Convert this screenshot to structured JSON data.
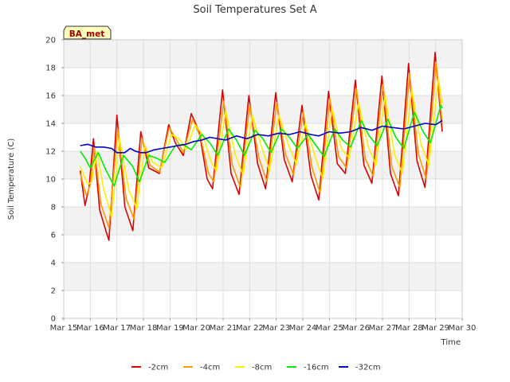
{
  "chart_data": {
    "type": "line",
    "title": "Soil Temperatures Set A",
    "xlabel": "Time",
    "ylabel": "Soil Temperature (C)",
    "ylim": [
      0,
      20
    ],
    "xlim": [
      15,
      30
    ],
    "grid": true,
    "legend": "bottom",
    "badge": "BA_met",
    "yticks": [
      0,
      2,
      4,
      6,
      8,
      10,
      12,
      14,
      16,
      18,
      20
    ],
    "xticks": [
      {
        "x": 15,
        "label": "Mar 15"
      },
      {
        "x": 16,
        "label": "Mar 16"
      },
      {
        "x": 17,
        "label": "Mar 17"
      },
      {
        "x": 18,
        "label": "Mar 18"
      },
      {
        "x": 19,
        "label": "Mar 19"
      },
      {
        "x": 20,
        "label": "Mar 20"
      },
      {
        "x": 21,
        "label": "Mar 21"
      },
      {
        "x": 22,
        "label": "Mar 22"
      },
      {
        "x": 23,
        "label": "Mar 23"
      },
      {
        "x": 24,
        "label": "Mar 24"
      },
      {
        "x": 25,
        "label": "Mar 25"
      },
      {
        "x": 26,
        "label": "Mar 26"
      },
      {
        "x": 27,
        "label": "Mar 27"
      },
      {
        "x": 28,
        "label": "Mar 28"
      },
      {
        "x": 29,
        "label": "Mar 29"
      },
      {
        "x": 30,
        "label": "Mar 30"
      }
    ],
    "series": [
      {
        "name": "-2cm",
        "color": "#dd0000",
        "points": [
          [
            15.62,
            10.6
          ],
          [
            15.8,
            8.1
          ],
          [
            15.95,
            9.4
          ],
          [
            16.12,
            12.9
          ],
          [
            16.35,
            7.8
          ],
          [
            16.6,
            6.2
          ],
          [
            16.7,
            5.6
          ],
          [
            17.0,
            14.6
          ],
          [
            17.3,
            8.0
          ],
          [
            17.6,
            6.3
          ],
          [
            17.9,
            13.4
          ],
          [
            18.2,
            10.8
          ],
          [
            18.6,
            10.4
          ],
          [
            18.95,
            13.9
          ],
          [
            19.2,
            12.6
          ],
          [
            19.5,
            11.7
          ],
          [
            19.8,
            14.7
          ],
          [
            20.1,
            13.4
          ],
          [
            20.4,
            10.0
          ],
          [
            20.6,
            9.3
          ],
          [
            20.98,
            16.4
          ],
          [
            21.3,
            10.4
          ],
          [
            21.6,
            8.9
          ],
          [
            21.97,
            16.0
          ],
          [
            22.3,
            11.1
          ],
          [
            22.6,
            9.3
          ],
          [
            22.98,
            16.2
          ],
          [
            23.3,
            11.4
          ],
          [
            23.6,
            9.8
          ],
          [
            23.97,
            15.3
          ],
          [
            24.3,
            10.3
          ],
          [
            24.6,
            8.5
          ],
          [
            24.97,
            16.3
          ],
          [
            25.3,
            11.1
          ],
          [
            25.6,
            10.4
          ],
          [
            25.98,
            17.1
          ],
          [
            26.3,
            11.0
          ],
          [
            26.6,
            9.7
          ],
          [
            26.98,
            17.4
          ],
          [
            27.3,
            10.4
          ],
          [
            27.6,
            8.8
          ],
          [
            27.98,
            18.3
          ],
          [
            28.3,
            11.3
          ],
          [
            28.6,
            9.4
          ],
          [
            28.98,
            19.1
          ],
          [
            29.25,
            13.4
          ]
        ]
      },
      {
        "name": "-4cm",
        "color": "#ff9900",
        "points": [
          [
            15.62,
            10.4
          ],
          [
            15.85,
            8.8
          ],
          [
            16.0,
            9.6
          ],
          [
            16.15,
            12.3
          ],
          [
            16.4,
            8.2
          ],
          [
            16.7,
            6.5
          ],
          [
            17.03,
            13.6
          ],
          [
            17.35,
            8.6
          ],
          [
            17.65,
            7.1
          ],
          [
            17.95,
            12.9
          ],
          [
            18.25,
            11.0
          ],
          [
            18.6,
            10.5
          ],
          [
            18.97,
            13.7
          ],
          [
            19.25,
            12.8
          ],
          [
            19.5,
            11.9
          ],
          [
            19.85,
            14.3
          ],
          [
            20.15,
            13.0
          ],
          [
            20.45,
            10.4
          ],
          [
            20.65,
            9.8
          ],
          [
            21.02,
            15.6
          ],
          [
            21.35,
            11.0
          ],
          [
            21.65,
            9.4
          ],
          [
            22.0,
            15.3
          ],
          [
            22.35,
            11.5
          ],
          [
            22.65,
            9.8
          ],
          [
            23.02,
            15.5
          ],
          [
            23.35,
            11.8
          ],
          [
            23.65,
            10.3
          ],
          [
            24.02,
            14.8
          ],
          [
            24.35,
            10.8
          ],
          [
            24.65,
            9.0
          ],
          [
            25.02,
            15.8
          ],
          [
            25.35,
            11.6
          ],
          [
            25.65,
            10.8
          ],
          [
            26.02,
            16.5
          ],
          [
            26.35,
            11.5
          ],
          [
            26.65,
            10.2
          ],
          [
            27.02,
            16.8
          ],
          [
            27.35,
            10.9
          ],
          [
            27.65,
            9.4
          ],
          [
            28.02,
            17.6
          ],
          [
            28.35,
            11.8
          ],
          [
            28.65,
            10.0
          ],
          [
            29.02,
            18.4
          ],
          [
            29.25,
            14.0
          ]
        ]
      },
      {
        "name": "-8cm",
        "color": "#ffee00",
        "points": [
          [
            15.62,
            10.9
          ],
          [
            15.9,
            9.6
          ],
          [
            16.05,
            9.8
          ],
          [
            16.25,
            12.0
          ],
          [
            16.5,
            9.3
          ],
          [
            16.8,
            7.3
          ],
          [
            17.1,
            12.9
          ],
          [
            17.45,
            9.2
          ],
          [
            17.75,
            7.9
          ],
          [
            18.05,
            12.4
          ],
          [
            18.35,
            11.2
          ],
          [
            18.7,
            10.8
          ],
          [
            19.05,
            13.2
          ],
          [
            19.35,
            12.9
          ],
          [
            19.6,
            12.1
          ],
          [
            19.95,
            13.9
          ],
          [
            20.25,
            13.1
          ],
          [
            20.55,
            11.2
          ],
          [
            20.75,
            10.6
          ],
          [
            21.1,
            14.9
          ],
          [
            21.45,
            11.8
          ],
          [
            21.75,
            10.3
          ],
          [
            22.1,
            14.6
          ],
          [
            22.45,
            12.3
          ],
          [
            22.75,
            10.6
          ],
          [
            23.1,
            14.6
          ],
          [
            23.45,
            12.5
          ],
          [
            23.75,
            11.1
          ],
          [
            24.1,
            14.0
          ],
          [
            24.45,
            11.7
          ],
          [
            24.75,
            10.0
          ],
          [
            25.1,
            15.1
          ],
          [
            25.45,
            12.2
          ],
          [
            25.75,
            11.5
          ],
          [
            26.1,
            15.5
          ],
          [
            26.45,
            12.4
          ],
          [
            26.75,
            11.0
          ],
          [
            27.1,
            16.0
          ],
          [
            27.45,
            11.8
          ],
          [
            27.75,
            10.4
          ],
          [
            28.1,
            16.5
          ],
          [
            28.45,
            12.5
          ],
          [
            28.75,
            11.0
          ],
          [
            29.1,
            17.3
          ],
          [
            29.25,
            15.4
          ]
        ]
      },
      {
        "name": "-16cm",
        "color": "#00ee00",
        "points": [
          [
            15.62,
            12.0
          ],
          [
            15.8,
            11.5
          ],
          [
            16.0,
            10.8
          ],
          [
            16.3,
            11.9
          ],
          [
            16.6,
            10.6
          ],
          [
            16.9,
            9.5
          ],
          [
            17.25,
            11.7
          ],
          [
            17.6,
            10.9
          ],
          [
            17.85,
            9.8
          ],
          [
            18.2,
            11.7
          ],
          [
            18.5,
            11.5
          ],
          [
            18.8,
            11.2
          ],
          [
            19.2,
            12.4
          ],
          [
            19.5,
            12.5
          ],
          [
            19.8,
            12.1
          ],
          [
            20.2,
            13.2
          ],
          [
            20.5,
            12.6
          ],
          [
            20.8,
            11.7
          ],
          [
            21.2,
            13.6
          ],
          [
            21.5,
            12.8
          ],
          [
            21.8,
            11.7
          ],
          [
            22.2,
            13.5
          ],
          [
            22.5,
            12.9
          ],
          [
            22.8,
            11.9
          ],
          [
            23.2,
            13.6
          ],
          [
            23.5,
            13.0
          ],
          [
            23.8,
            12.2
          ],
          [
            24.2,
            13.2
          ],
          [
            24.5,
            12.4
          ],
          [
            24.8,
            11.6
          ],
          [
            25.2,
            13.6
          ],
          [
            25.5,
            12.8
          ],
          [
            25.8,
            12.3
          ],
          [
            26.2,
            14.2
          ],
          [
            26.5,
            13.1
          ],
          [
            26.8,
            12.4
          ],
          [
            27.2,
            14.3
          ],
          [
            27.5,
            13.0
          ],
          [
            27.8,
            12.2
          ],
          [
            28.2,
            14.8
          ],
          [
            28.5,
            13.5
          ],
          [
            28.8,
            12.6
          ],
          [
            29.2,
            15.3
          ],
          [
            29.25,
            15.1
          ]
        ]
      },
      {
        "name": "-32cm",
        "color": "#0000cc",
        "points": [
          [
            15.62,
            12.4
          ],
          [
            15.9,
            12.5
          ],
          [
            16.2,
            12.3
          ],
          [
            16.5,
            12.3
          ],
          [
            16.8,
            12.2
          ],
          [
            17.0,
            11.9
          ],
          [
            17.3,
            11.9
          ],
          [
            17.5,
            12.2
          ],
          [
            17.7,
            12.0
          ],
          [
            17.9,
            11.9
          ],
          [
            18.1,
            11.9
          ],
          [
            18.4,
            12.1
          ],
          [
            18.7,
            12.2
          ],
          [
            19.0,
            12.3
          ],
          [
            19.3,
            12.4
          ],
          [
            19.6,
            12.5
          ],
          [
            19.9,
            12.7
          ],
          [
            20.2,
            12.8
          ],
          [
            20.5,
            13.0
          ],
          [
            20.8,
            12.9
          ],
          [
            21.1,
            12.8
          ],
          [
            21.5,
            13.1
          ],
          [
            21.9,
            12.9
          ],
          [
            22.3,
            13.2
          ],
          [
            22.7,
            13.1
          ],
          [
            23.1,
            13.3
          ],
          [
            23.5,
            13.2
          ],
          [
            23.9,
            13.4
          ],
          [
            24.3,
            13.2
          ],
          [
            24.6,
            13.1
          ],
          [
            25.0,
            13.4
          ],
          [
            25.4,
            13.3
          ],
          [
            25.8,
            13.4
          ],
          [
            26.2,
            13.7
          ],
          [
            26.6,
            13.5
          ],
          [
            27.0,
            13.8
          ],
          [
            27.4,
            13.7
          ],
          [
            27.8,
            13.6
          ],
          [
            28.2,
            13.8
          ],
          [
            28.6,
            14.0
          ],
          [
            29.0,
            13.9
          ],
          [
            29.25,
            14.2
          ]
        ]
      }
    ]
  }
}
